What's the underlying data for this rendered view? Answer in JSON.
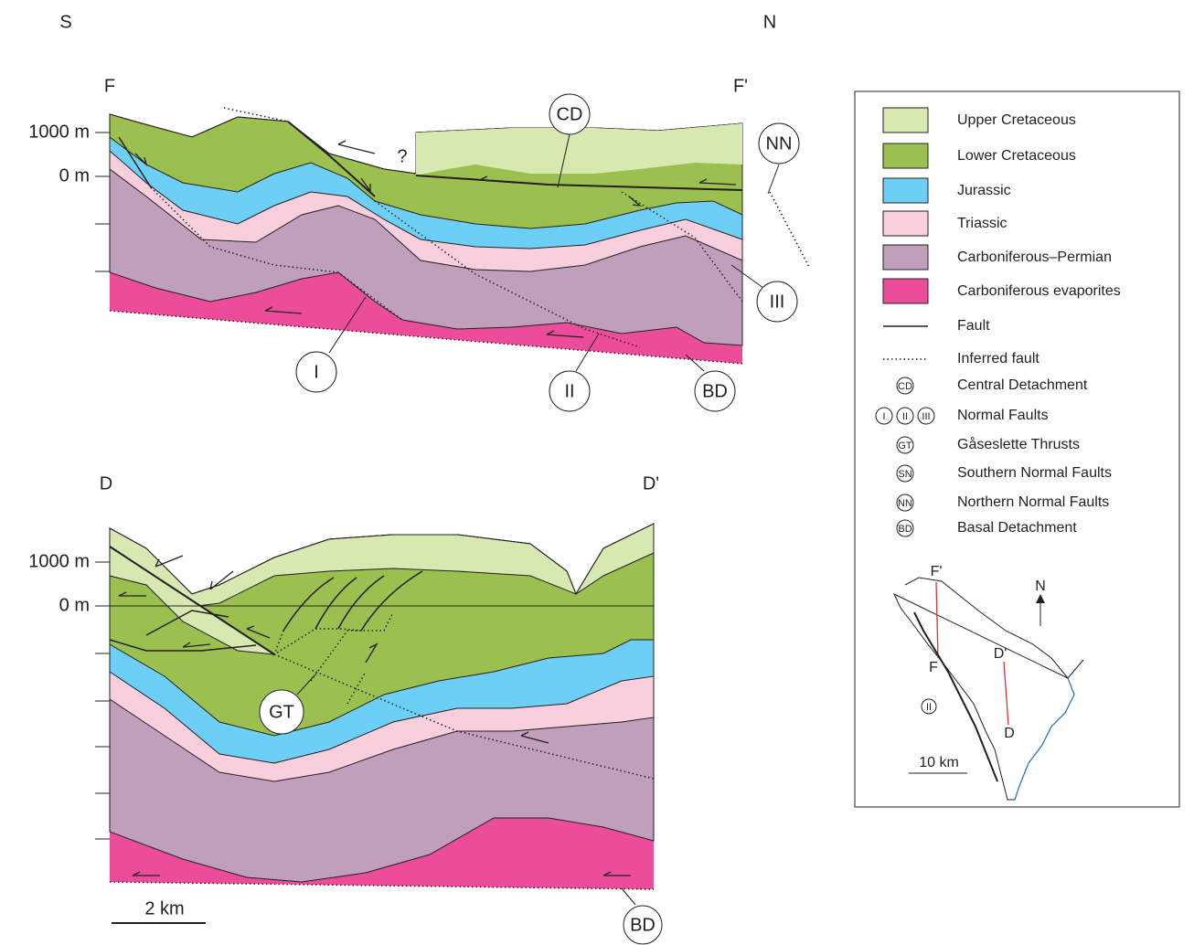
{
  "orientation": {
    "left": "S",
    "right": "N"
  },
  "section_f": {
    "start": "F",
    "end": "F'",
    "depth_labels": [
      "1000 m",
      "0 m"
    ],
    "question": "?",
    "callouts": [
      "CD",
      "NN",
      "III",
      "I",
      "II",
      "BD"
    ]
  },
  "section_d": {
    "start": "D",
    "end": "D'",
    "depth_labels": [
      "1000 m",
      "0 m"
    ],
    "callouts": [
      "GT",
      "BD"
    ],
    "scale_bar": "2 km"
  },
  "legend": {
    "units": [
      "Upper Cretaceous",
      "Lower Cretaceous",
      "Jurassic",
      "Triassic",
      "Carboniferous–Permian",
      "Carboniferous evaporites"
    ],
    "lines": [
      "Fault",
      "Inferred fault"
    ],
    "symbols": [
      {
        "symbols": [
          "CD"
        ],
        "label": "Central Detachment"
      },
      {
        "symbols": [
          "I",
          "II",
          "III"
        ],
        "label": "Normal Faults"
      },
      {
        "symbols": [
          "GT"
        ],
        "label": "Gåseslette Thrusts"
      },
      {
        "symbols": [
          "SN"
        ],
        "label": "Southern Normal Faults"
      },
      {
        "symbols": [
          "NN"
        ],
        "label": "Northern Normal Faults"
      },
      {
        "symbols": [
          "BD"
        ],
        "label": "Basal Detachment"
      }
    ]
  },
  "inset_map": {
    "labels": [
      "F'",
      "F",
      "D'",
      "D",
      "N",
      "II"
    ],
    "scale_bar": "10 km"
  }
}
